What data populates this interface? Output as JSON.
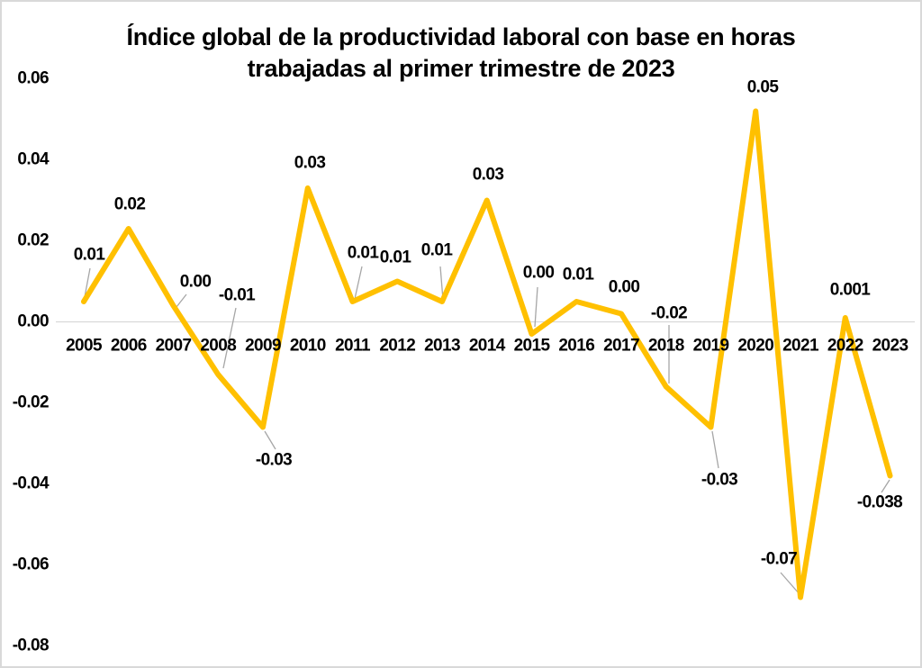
{
  "window": {
    "background": "#ffffff",
    "border_color": "#d9d9d9"
  },
  "title": {
    "line1": "Índice global de la productividad laboral con base en horas",
    "line2": "trabajadas al primer trimestre de 2023"
  },
  "chart_data": {
    "type": "line",
    "title": "Índice global de la productividad laboral con base en horas trabajadas al primer trimestre de 2023",
    "categories": [
      "2005",
      "2006",
      "2007",
      "2008",
      "2009",
      "2010",
      "2011",
      "2012",
      "2013",
      "2014",
      "2015",
      "2016",
      "2017",
      "2018",
      "2019",
      "2020",
      "2021",
      "2022",
      "2023"
    ],
    "values": [
      0.01,
      0.02,
      0,
      -0.01,
      -0.03,
      0.03,
      0.01,
      0.01,
      0.01,
      0.03,
      0,
      0.01,
      0,
      -0.02,
      -0.03,
      0.05,
      -0.07,
      0.001,
      -0.038
    ],
    "data_labels": [
      "0.01",
      "0.02",
      "0.00",
      "-0.01",
      "-0.03",
      "0.03",
      "0.01",
      "0.01",
      "0.01",
      "0.03",
      "0.00",
      "0.01",
      "0.00",
      "-0.02",
      "-0.03",
      "0.05",
      "-0.07",
      "0.001",
      "-0.038"
    ],
    "plotted_values": [
      0.005,
      0.023,
      0.004,
      -0.013,
      -0.026,
      0.033,
      0.005,
      0.01,
      0.005,
      0.03,
      -0.003,
      0.005,
      0.002,
      -0.016,
      -0.026,
      0.052,
      -0.068,
      0.001,
      -0.038
    ],
    "y_ticks": [
      "0.06",
      "0.04",
      "0.02",
      "0.00",
      "-0.02",
      "-0.04",
      "-0.06",
      "-0.08"
    ],
    "y_tick_values": [
      0.06,
      0.04,
      0.02,
      0,
      -0.02,
      -0.04,
      -0.06,
      -0.08
    ],
    "ylim": [
      -0.08,
      0.06
    ],
    "xlabel": "",
    "ylabel": "",
    "legend": "none",
    "grid": "zero-baseline-only",
    "line_color": "#FFC000",
    "text_color": "#000000",
    "leader_line_color": "#A6A6A6",
    "baseline_color": "#D9D9D9"
  }
}
